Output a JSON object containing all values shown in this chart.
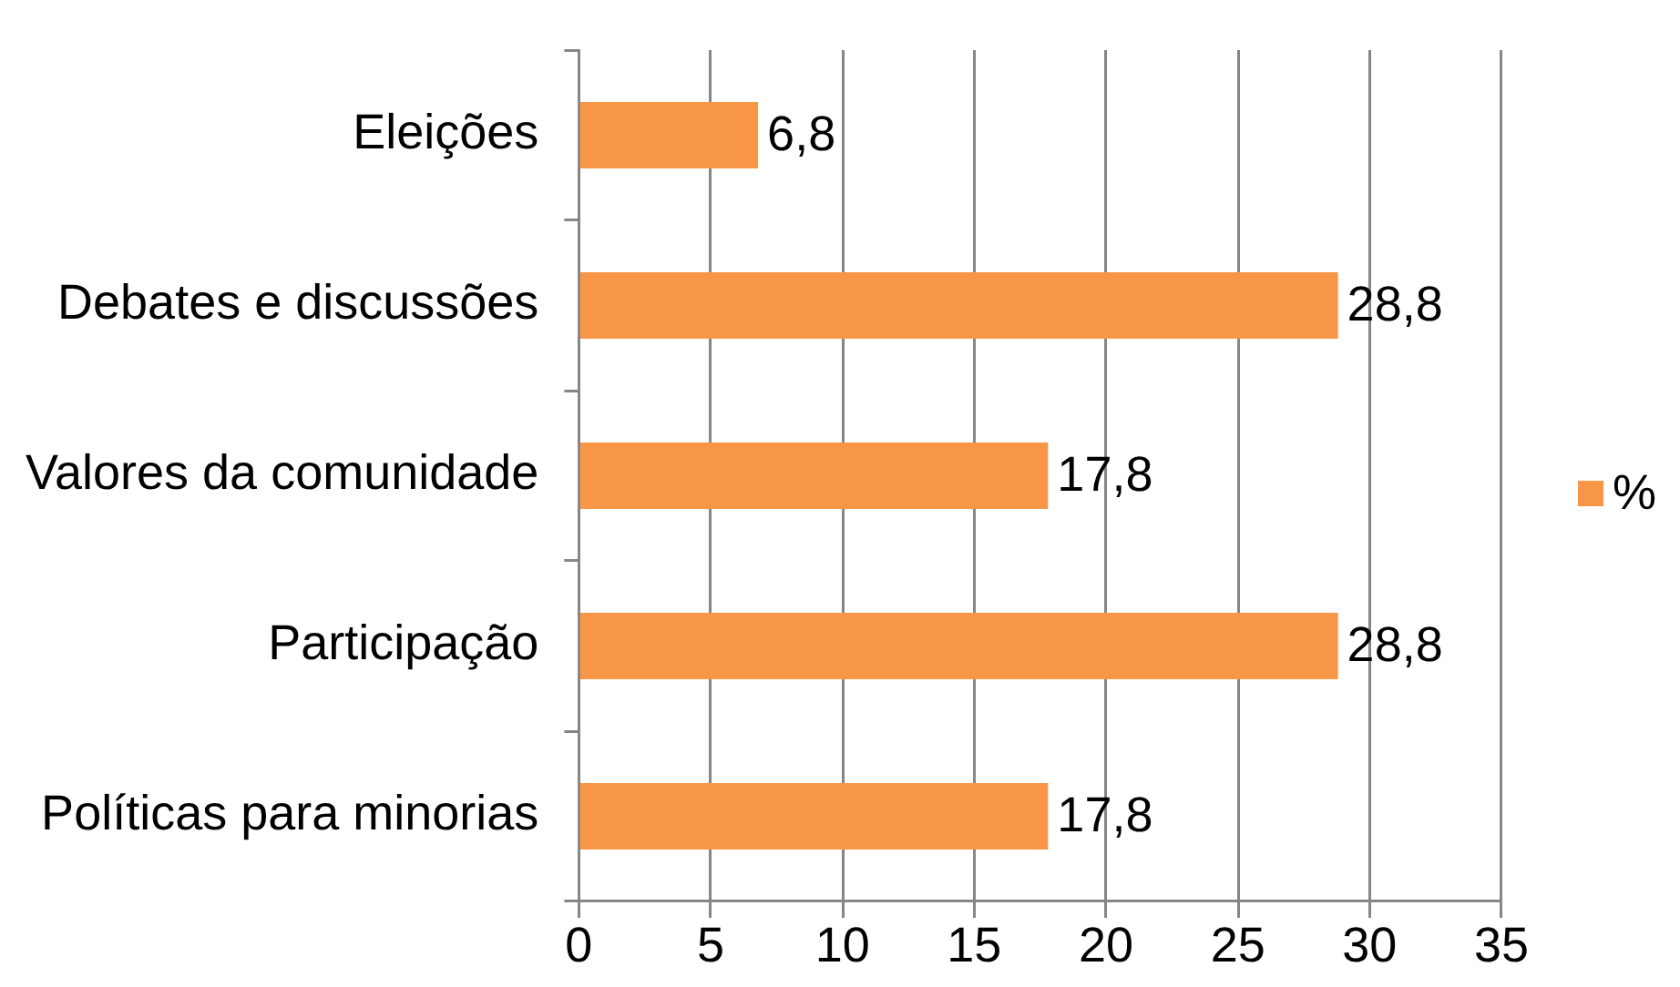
{
  "chart_data": {
    "type": "bar",
    "orientation": "horizontal",
    "categories": [
      "Eleições",
      "Debates e discussões",
      "Valores da comunidade",
      "Participação",
      "Políticas para minorias"
    ],
    "series": [
      {
        "name": "%",
        "color": "#f79646",
        "values": [
          6.8,
          28.8,
          17.8,
          28.8,
          17.8
        ],
        "value_labels": [
          "6,8",
          "28,8",
          "17,8",
          "28,8",
          "17,8"
        ]
      }
    ],
    "xlim": [
      0,
      35
    ],
    "xticks": [
      0,
      5,
      10,
      15,
      20,
      25,
      30,
      35
    ],
    "grid": "x",
    "legend": "right"
  }
}
